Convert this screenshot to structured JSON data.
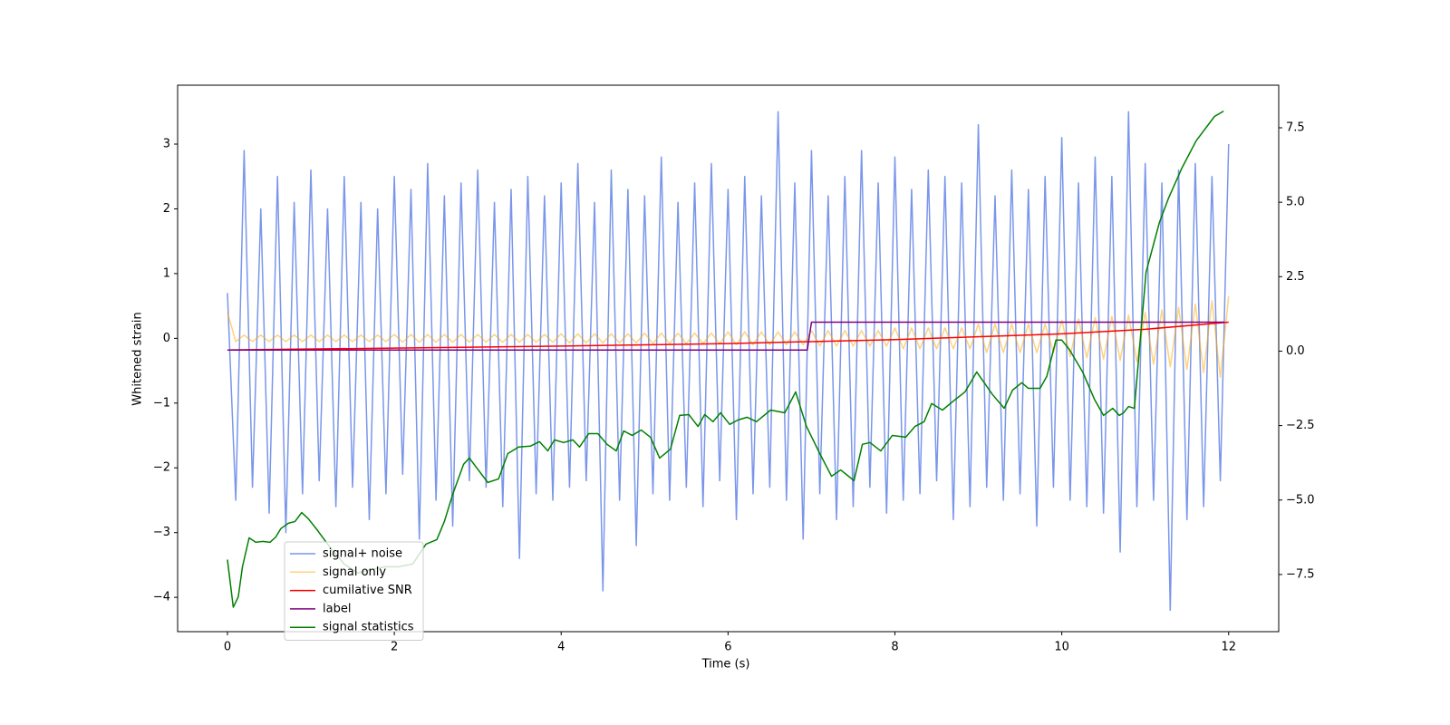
{
  "chart_data": {
    "type": "line",
    "xlabel": "Time (s)",
    "ylabel": "Whitened strain",
    "xlim": [
      -0.597,
      12.6
    ],
    "ylim": [
      -4.53,
      3.91
    ],
    "y2lim": [
      -9.42,
      8.93
    ],
    "xticks": [
      0,
      2,
      4,
      6,
      8,
      10,
      12
    ],
    "yticks": [
      {
        "value": -4,
        "label": "−4"
      },
      {
        "value": -3,
        "label": "−3"
      },
      {
        "value": -2,
        "label": "−2"
      },
      {
        "value": -1,
        "label": "−1"
      },
      0,
      1,
      2,
      3
    ],
    "y2ticks": [
      {
        "value": -7.5,
        "label": "−7.5"
      },
      {
        "value": -5,
        "label": "−5.0"
      },
      {
        "value": -2.5,
        "label": "−2.5"
      },
      {
        "value": 0,
        "label": "0.0"
      },
      2.5,
      {
        "value": 5,
        "label": "5.0"
      },
      7.5
    ],
    "legend": "lower left",
    "series": [
      {
        "name": "signal+ noise",
        "color": "royalblue",
        "alpha": 0.7,
        "x": [
          0,
          0.1,
          0.2,
          0.3,
          0.4,
          0.5,
          0.6,
          0.7,
          0.8,
          0.9,
          1,
          1.1,
          1.2,
          1.3,
          1.4,
          1.5,
          1.6,
          1.7,
          1.8,
          1.9,
          2,
          2.1,
          2.2,
          2.3,
          2.4,
          2.5,
          2.6,
          2.7,
          2.8,
          2.9,
          3,
          3.1,
          3.2,
          3.3,
          3.4,
          3.5,
          3.6,
          3.7,
          3.8,
          3.9,
          4,
          4.1,
          4.2,
          4.3,
          4.4,
          4.5,
          4.6,
          4.7,
          4.8,
          4.9,
          5,
          5.1,
          5.2,
          5.3,
          5.4,
          5.5,
          5.6,
          5.7,
          5.8,
          5.9,
          6,
          6.1,
          6.2,
          6.3,
          6.4,
          6.5,
          6.6,
          6.7,
          6.8,
          6.9,
          7,
          7.1,
          7.2,
          7.3,
          7.4,
          7.5,
          7.6,
          7.7,
          7.8,
          7.9,
          8,
          8.1,
          8.2,
          8.3,
          8.4,
          8.5,
          8.6,
          8.7,
          8.8,
          8.9,
          9,
          9.1,
          9.2,
          9.3,
          9.4,
          9.5,
          9.6,
          9.7,
          9.8,
          9.9,
          10,
          10.1,
          10.2,
          10.3,
          10.4,
          10.5,
          10.6,
          10.7,
          10.8,
          10.9,
          11,
          11.1,
          11.2,
          11.3,
          11.4,
          11.5,
          11.6,
          11.7,
          11.8,
          11.9,
          12
        ],
        "values": [
          0.7,
          -2.5,
          2.9,
          -2.3,
          2.0,
          -2.7,
          2.5,
          -3.0,
          2.1,
          -2.4,
          2.6,
          -2.2,
          2.0,
          -2.6,
          2.5,
          -2.3,
          2.1,
          -2.8,
          2.0,
          -2.4,
          2.5,
          -2.1,
          2.3,
          -3.1,
          2.7,
          -2.5,
          2.2,
          -2.9,
          2.4,
          -2.2,
          2.6,
          -2.3,
          2.1,
          -2.6,
          2.3,
          -3.4,
          2.5,
          -2.4,
          2.2,
          -2.5,
          2.4,
          -2.3,
          2.7,
          -2.2,
          2.1,
          -3.9,
          2.6,
          -2.5,
          2.3,
          -3.2,
          2.2,
          -2.4,
          2.8,
          -2.5,
          2.1,
          -2.3,
          2.4,
          -2.6,
          2.7,
          -2.2,
          2.3,
          -2.8,
          2.5,
          -2.4,
          2.2,
          -2.3,
          3.5,
          -2.5,
          2.4,
          -3.1,
          2.9,
          -2.4,
          2.2,
          -2.8,
          2.5,
          -2.6,
          2.9,
          -2.3,
          2.4,
          -2.7,
          2.8,
          -2.5,
          2.3,
          -2.4,
          2.6,
          -2.2,
          2.5,
          -2.8,
          2.4,
          -2.6,
          3.3,
          -2.3,
          2.2,
          -2.5,
          2.6,
          -2.4,
          2.3,
          -2.9,
          2.5,
          -2.3,
          3.1,
          -2.5,
          2.4,
          -2.6,
          2.8,
          -2.7,
          2.5,
          -3.3,
          3.5,
          -2.6,
          2.7,
          -2.5,
          2.4,
          -4.2,
          2.6,
          -2.8,
          2.7,
          -2.6,
          2.5,
          -2.2,
          3.0
        ]
      },
      {
        "name": "signal only",
        "color": "orange",
        "alpha": 0.5,
        "x": [
          0,
          0.1,
          0.2,
          0.3,
          0.4,
          0.5,
          0.6,
          0.7,
          0.8,
          0.9,
          1,
          1.1,
          1.2,
          1.3,
          1.4,
          1.5,
          1.6,
          1.7,
          1.8,
          1.9,
          2,
          2.1,
          2.2,
          2.3,
          2.4,
          2.5,
          2.6,
          2.7,
          2.8,
          2.9,
          3,
          3.1,
          3.2,
          3.3,
          3.4,
          3.5,
          3.6,
          3.7,
          3.8,
          3.9,
          4,
          4.1,
          4.2,
          4.3,
          4.4,
          4.5,
          4.6,
          4.7,
          4.8,
          4.9,
          5,
          5.1,
          5.2,
          5.3,
          5.4,
          5.5,
          5.6,
          5.7,
          5.8,
          5.9,
          6,
          6.1,
          6.2,
          6.3,
          6.4,
          6.5,
          6.6,
          6.7,
          6.8,
          6.9,
          7,
          7.1,
          7.2,
          7.3,
          7.4,
          7.5,
          7.6,
          7.7,
          7.8,
          7.9,
          8,
          8.1,
          8.2,
          8.3,
          8.4,
          8.5,
          8.6,
          8.7,
          8.8,
          8.9,
          9,
          9.1,
          9.2,
          9.3,
          9.4,
          9.5,
          9.6,
          9.7,
          9.8,
          9.9,
          10,
          10.1,
          10.2,
          10.3,
          10.4,
          10.5,
          10.6,
          10.7,
          10.8,
          10.9,
          11,
          11.1,
          11.2,
          11.3,
          11.4,
          11.5,
          11.6,
          11.7,
          11.8,
          11.9,
          12
        ],
        "values": [
          0.4,
          -0.05,
          0.05,
          -0.05,
          0.05,
          -0.05,
          0.05,
          -0.05,
          0.05,
          -0.05,
          0.05,
          -0.05,
          0.05,
          -0.05,
          0.05,
          -0.05,
          0.05,
          -0.05,
          0.05,
          -0.05,
          0.06,
          -0.06,
          0.06,
          -0.06,
          0.06,
          -0.06,
          0.06,
          -0.06,
          0.06,
          -0.06,
          0.06,
          -0.06,
          0.06,
          -0.06,
          0.06,
          -0.06,
          0.06,
          -0.06,
          0.06,
          -0.06,
          0.07,
          -0.07,
          0.07,
          -0.07,
          0.07,
          -0.07,
          0.07,
          -0.07,
          0.07,
          -0.07,
          0.08,
          -0.08,
          0.08,
          -0.08,
          0.08,
          -0.08,
          0.08,
          -0.08,
          0.08,
          -0.08,
          0.1,
          -0.1,
          0.1,
          -0.1,
          0.1,
          -0.1,
          0.1,
          -0.1,
          0.1,
          -0.1,
          0.12,
          -0.12,
          0.12,
          -0.12,
          0.12,
          -0.12,
          0.12,
          -0.12,
          0.12,
          -0.12,
          0.16,
          -0.16,
          0.16,
          -0.16,
          0.16,
          -0.16,
          0.16,
          -0.16,
          0.16,
          -0.16,
          0.22,
          -0.22,
          0.22,
          -0.22,
          0.22,
          -0.22,
          0.22,
          -0.22,
          0.22,
          -0.22,
          0.28,
          -0.28,
          0.3,
          -0.3,
          0.32,
          -0.32,
          0.34,
          -0.34,
          0.36,
          -0.36,
          0.4,
          -0.4,
          0.44,
          -0.44,
          0.48,
          -0.48,
          0.53,
          -0.53,
          0.58,
          -0.6,
          0.65
        ]
      },
      {
        "name": "cumilative SNR",
        "color": "red",
        "alpha": 1,
        "x": [
          0,
          2,
          4,
          6,
          8,
          10,
          11,
          12
        ],
        "values": [
          -0.18,
          -0.15,
          -0.12,
          -0.08,
          -0.02,
          0.07,
          0.14,
          0.25
        ]
      },
      {
        "name": "label",
        "color": "purple",
        "alpha": 1,
        "x": [
          0,
          6.95,
          7.0,
          11.95
        ],
        "values": [
          -0.18,
          -0.18,
          0.25,
          0.25
        ]
      },
      {
        "name": "signal statistics",
        "color": "green",
        "alpha": 1,
        "axis": "y2",
        "x": [
          0,
          0.07,
          0.13,
          0.18,
          0.26,
          0.34,
          0.42,
          0.51,
          0.58,
          0.64,
          0.73,
          0.81,
          0.89,
          0.97,
          1.08,
          1.24,
          1.4,
          1.56,
          1.73,
          1.89,
          2.05,
          2.22,
          2.38,
          2.51,
          2.6,
          2.7,
          2.83,
          2.9,
          2.98,
          3.12,
          3.25,
          3.36,
          3.49,
          3.63,
          3.74,
          3.84,
          3.92,
          4.03,
          4.14,
          4.22,
          4.33,
          4.44,
          4.55,
          4.66,
          4.75,
          4.85,
          4.96,
          5.07,
          5.18,
          5.31,
          5.42,
          5.53,
          5.64,
          5.72,
          5.82,
          5.91,
          6.02,
          6.12,
          6.23,
          6.34,
          6.51,
          6.68,
          6.81,
          6.94,
          7.1,
          7.24,
          7.35,
          7.51,
          7.61,
          7.7,
          7.83,
          7.97,
          8.13,
          8.24,
          8.35,
          8.44,
          8.57,
          8.73,
          8.84,
          8.98,
          9.17,
          9.31,
          9.41,
          9.52,
          9.6,
          9.74,
          9.82,
          9.93,
          10,
          10.09,
          10.25,
          10.39,
          10.5,
          10.61,
          10.69,
          10.74,
          10.8,
          10.87,
          11.01,
          11.17,
          11.28,
          11.44,
          11.61,
          11.83,
          11.94
        ],
        "values": [
          -7.0,
          -8.6,
          -8.25,
          -7.24,
          -6.27,
          -6.42,
          -6.39,
          -6.42,
          -6.24,
          -5.96,
          -5.78,
          -5.72,
          -5.42,
          -5.63,
          -6.02,
          -6.63,
          -7.15,
          -7.45,
          -7.33,
          -7.24,
          -7.24,
          -7.15,
          -6.48,
          -6.33,
          -5.72,
          -4.81,
          -3.8,
          -3.59,
          -3.89,
          -4.41,
          -4.29,
          -3.44,
          -3.22,
          -3.19,
          -3.04,
          -3.35,
          -2.98,
          -3.07,
          -2.98,
          -3.22,
          -2.77,
          -2.77,
          -3.13,
          -3.35,
          -2.68,
          -2.83,
          -2.65,
          -2.89,
          -3.59,
          -3.29,
          -2.16,
          -2.13,
          -2.53,
          -2.13,
          -2.37,
          -2.07,
          -2.46,
          -2.31,
          -2.22,
          -2.37,
          -1.98,
          -2.07,
          -1.37,
          -2.53,
          -3.44,
          -4.2,
          -3.99,
          -4.35,
          -3.13,
          -3.07,
          -3.35,
          -2.83,
          -2.89,
          -2.53,
          -2.37,
          -1.76,
          -1.98,
          -1.61,
          -1.37,
          -0.7,
          -1.46,
          -1.92,
          -1.31,
          -1.06,
          -1.25,
          -1.25,
          -0.85,
          0.37,
          0.37,
          0.06,
          -0.7,
          -1.61,
          -2.16,
          -1.92,
          -2.16,
          -2.07,
          -1.86,
          -1.92,
          2.65,
          4.32,
          5.14,
          6.15,
          7.06,
          7.88,
          8.06
        ]
      }
    ]
  }
}
